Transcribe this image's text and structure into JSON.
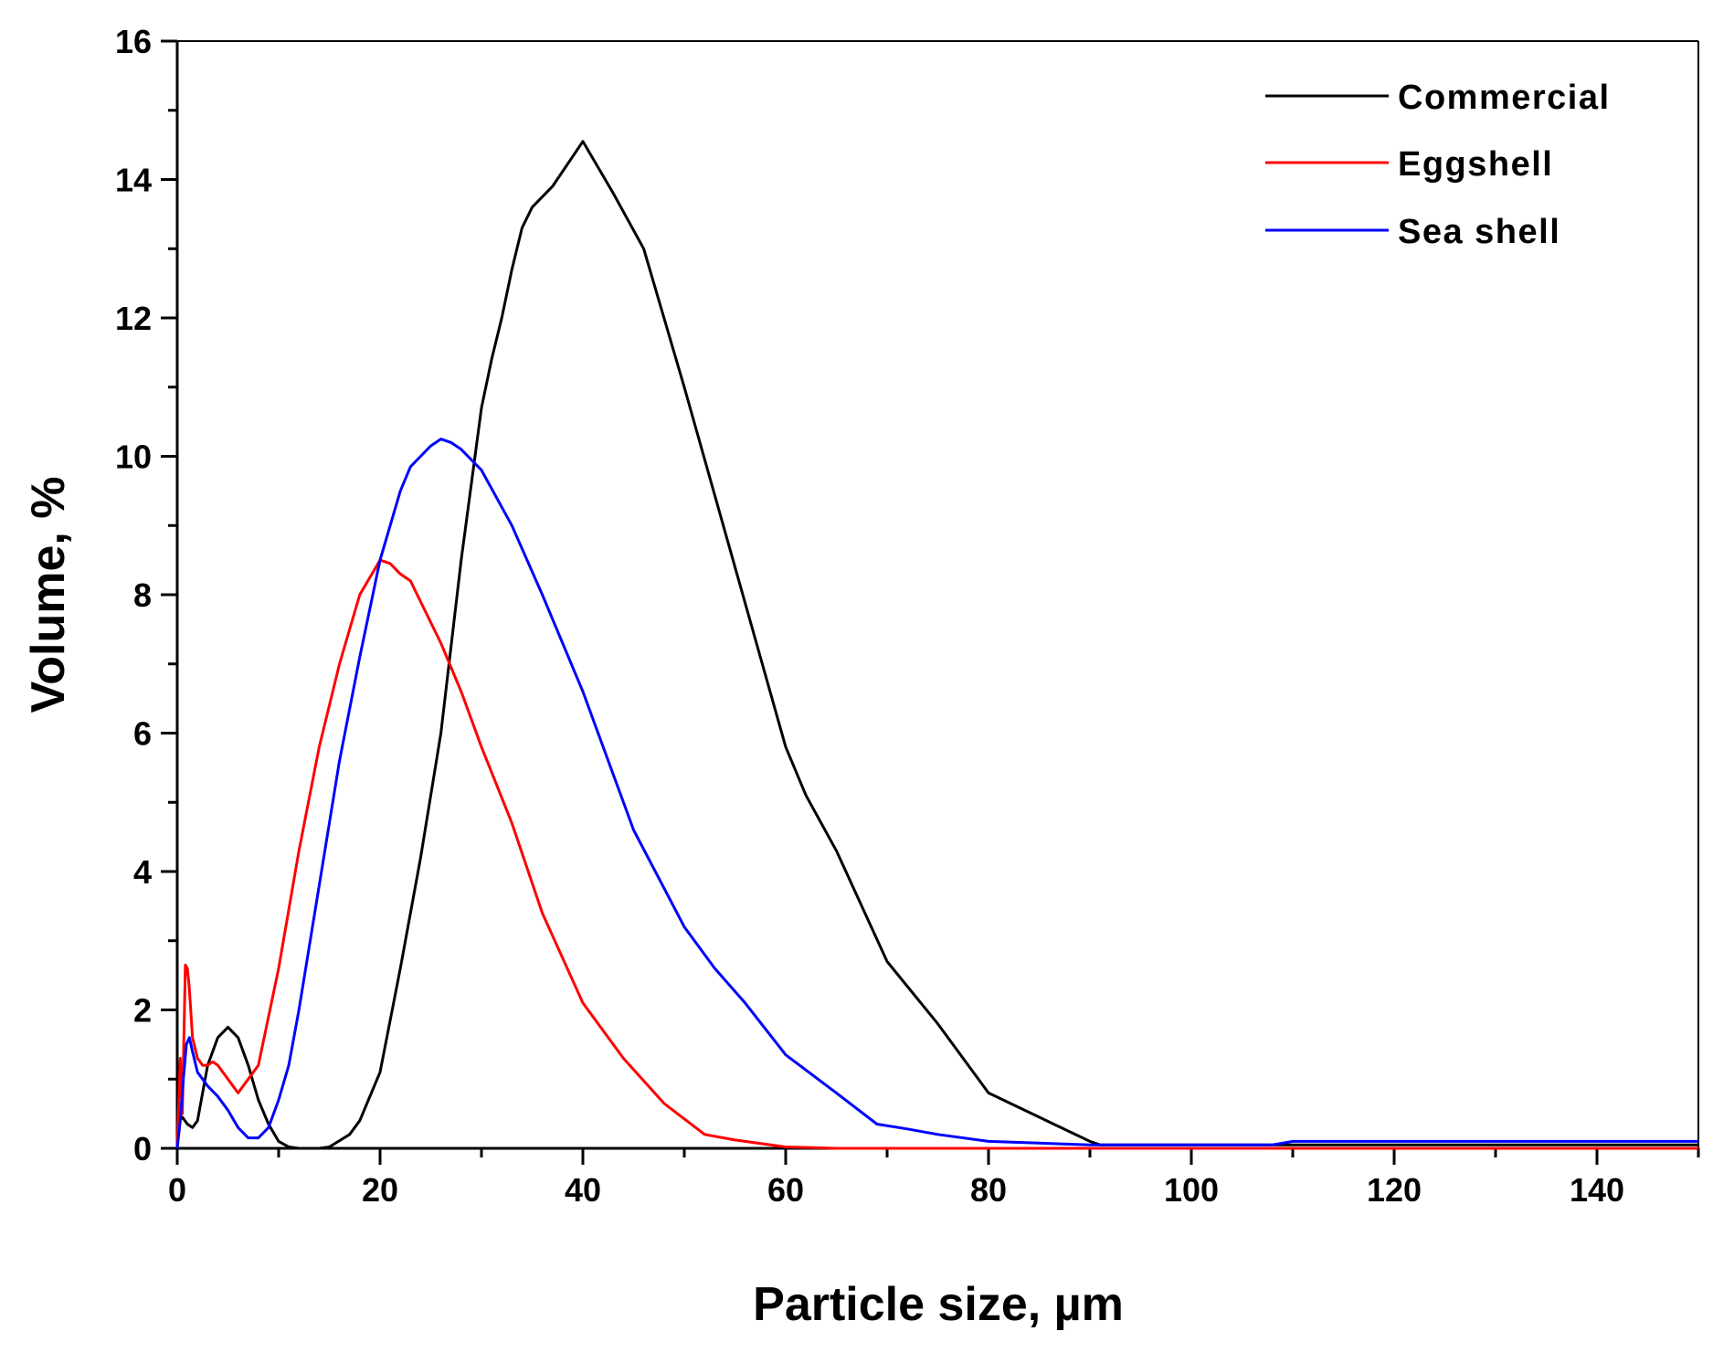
{
  "chart_data": {
    "type": "line",
    "title": "",
    "xlabel": "Particle size, µm",
    "ylabel": "Volume, %",
    "xlim": [
      0,
      150
    ],
    "ylim": [
      0,
      16
    ],
    "xticks": [
      0,
      20,
      40,
      60,
      80,
      100,
      120,
      140
    ],
    "yticks": [
      0,
      2,
      4,
      6,
      8,
      10,
      12,
      14,
      16
    ],
    "grid": false,
    "legend_position": "top-right",
    "series": [
      {
        "name": "Commercial",
        "color": "#000000",
        "x": [
          0,
          0.5,
          1,
          1.5,
          2,
          3,
          4,
          5,
          6,
          7,
          8,
          9,
          10,
          11,
          12,
          14,
          15,
          17,
          18,
          20,
          22,
          24,
          26,
          28,
          29,
          30,
          31,
          32,
          33,
          34,
          35,
          37,
          40,
          43,
          46,
          50,
          55,
          60,
          62,
          65,
          70,
          75,
          80,
          85,
          90,
          91,
          92,
          100,
          110,
          120,
          130,
          140,
          150
        ],
        "y": [
          0.35,
          0.45,
          0.35,
          0.3,
          0.4,
          1.2,
          1.6,
          1.75,
          1.6,
          1.2,
          0.7,
          0.35,
          0.1,
          0.02,
          0,
          0,
          0.02,
          0.2,
          0.4,
          1.1,
          2.6,
          4.2,
          6.0,
          8.5,
          9.6,
          10.7,
          11.4,
          12.0,
          12.7,
          13.3,
          13.6,
          13.9,
          14.55,
          13.8,
          13.0,
          11.0,
          8.4,
          5.8,
          5.1,
          4.3,
          2.7,
          1.8,
          0.8,
          0.45,
          0.1,
          0.05,
          0.05,
          0.05,
          0.05,
          0.05,
          0.05,
          0.05,
          0.05
        ]
      },
      {
        "name": "Eggshell",
        "color": "#ff0000",
        "x": [
          0,
          0.3,
          0.5,
          0.8,
          1,
          1.2,
          1.5,
          2,
          2.5,
          3,
          3.5,
          4,
          5,
          6,
          8,
          10,
          12,
          14,
          16,
          18,
          20,
          21,
          22,
          23,
          24,
          26,
          28,
          30,
          33,
          36,
          40,
          44,
          48,
          52,
          55,
          60,
          65,
          70,
          80,
          90,
          100,
          110,
          120,
          130,
          140,
          150
        ],
        "y": [
          0,
          1.3,
          0.5,
          2.65,
          2.6,
          2.3,
          1.6,
          1.3,
          1.2,
          1.2,
          1.25,
          1.2,
          1.0,
          0.8,
          1.2,
          2.6,
          4.3,
          5.8,
          7.0,
          8.0,
          8.5,
          8.45,
          8.3,
          8.2,
          7.9,
          7.3,
          6.6,
          5.8,
          4.7,
          3.4,
          2.1,
          1.3,
          0.65,
          0.2,
          0.12,
          0.02,
          0,
          0,
          0,
          0,
          0,
          0,
          0,
          0,
          0,
          0
        ]
      },
      {
        "name": "Sea shell",
        "color": "#0000ff",
        "x": [
          0,
          0.3,
          0.6,
          0.9,
          1.2,
          1.5,
          2,
          3,
          4,
          5,
          6,
          7,
          8,
          9,
          10,
          11,
          12,
          14,
          16,
          18,
          20,
          22,
          23,
          24,
          25,
          26,
          27,
          28,
          30,
          33,
          36,
          40,
          45,
          50,
          53,
          56,
          60,
          65,
          69,
          72,
          75,
          80,
          90,
          100,
          108,
          110,
          120,
          130,
          140,
          150
        ],
        "y": [
          0,
          0.4,
          1.0,
          1.5,
          1.6,
          1.4,
          1.1,
          0.9,
          0.75,
          0.55,
          0.3,
          0.15,
          0.15,
          0.3,
          0.7,
          1.2,
          2.0,
          3.8,
          5.6,
          7.1,
          8.5,
          9.5,
          9.85,
          10.0,
          10.15,
          10.25,
          10.2,
          10.1,
          9.8,
          9.0,
          8.0,
          6.6,
          4.6,
          3.2,
          2.6,
          2.1,
          1.35,
          0.8,
          0.35,
          0.28,
          0.2,
          0.1,
          0.05,
          0.05,
          0.05,
          0.1,
          0.1,
          0.1,
          0.1,
          0.1
        ]
      }
    ]
  }
}
